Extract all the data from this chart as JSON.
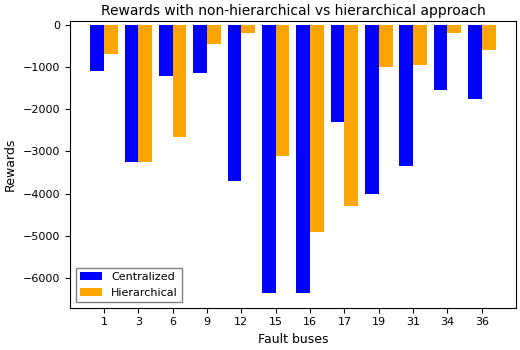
{
  "categories": [
    "1",
    "3",
    "6",
    "9",
    "12",
    "15",
    "16",
    "17",
    "19",
    "31",
    "34",
    "36"
  ],
  "centralized": [
    -1100,
    -3250,
    -1200,
    -1150,
    -3700,
    -6350,
    -6350,
    -2300,
    -4000,
    -3350,
    -1550,
    -1750
  ],
  "hierarchical": [
    -700,
    -3250,
    -2650,
    -450,
    -200,
    -3100,
    -4900,
    -4300,
    -1000,
    -950,
    -200,
    -600
  ],
  "title": "Rewards with non‐hierarchical vs hierarchical approach",
  "xlabel": "Fault buses",
  "ylabel": "Rewards",
  "ylim": [
    -6700,
    100
  ],
  "yticks": [
    0,
    -1000,
    -2000,
    -3000,
    -4000,
    -5000,
    -6000
  ],
  "legend_labels": [
    "Centralized",
    "Hierarchical"
  ],
  "bar_colors": [
    "#0000ff",
    "#ffa500"
  ],
  "bar_width": 0.4,
  "legend_loc": "lower left",
  "background_color": "#ffffff",
  "figsize": [
    5.2,
    3.5
  ],
  "dpi": 100
}
